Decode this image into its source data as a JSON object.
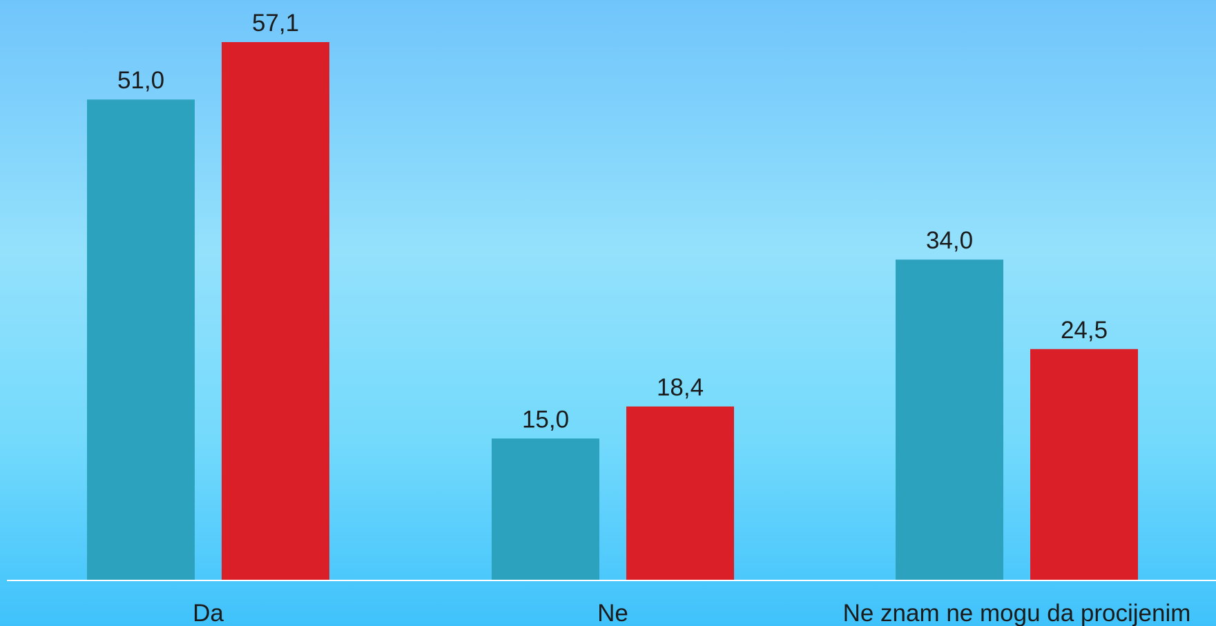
{
  "chart_data": {
    "type": "bar",
    "categories": [
      "Da",
      "Ne",
      "Ne znam ne mogu da procijenim"
    ],
    "series": [
      {
        "color": "#2ca2be",
        "values": [
          51.0,
          15.0,
          34.0
        ],
        "labels": [
          "51,0",
          "15,0",
          "34,0"
        ]
      },
      {
        "color": "#da1f28",
        "values": [
          57.1,
          18.4,
          24.5
        ],
        "labels": [
          "57,1",
          "18,4",
          "24,5"
        ]
      }
    ],
    "ylim": [
      0,
      57.1
    ],
    "grid": false,
    "legend": "none",
    "baseline_color": "#ffffff"
  }
}
